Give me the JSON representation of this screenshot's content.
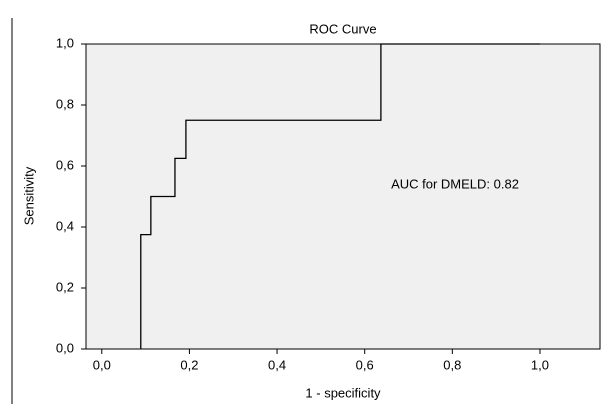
{
  "chart_data": {
    "type": "line",
    "title": "ROC Curve",
    "x_label": "1 - specificity",
    "y_label": "Sensitivity",
    "annotation": "AUC for DMELD: 0.82",
    "x": [
      0.089,
      0.089,
      0.112,
      0.112,
      0.167,
      0.167,
      0.192,
      0.192,
      0.637,
      0.637,
      1.0
    ],
    "values": [
      0,
      0.375,
      0.375,
      0.5,
      0.5,
      0.625,
      0.625,
      0.75,
      0.75,
      1.0,
      1.0
    ],
    "color": "#000000",
    "xlim": [
      -0.036,
      1.137
    ],
    "ylim": [
      0,
      1
    ],
    "xticks": [
      {
        "value": 0,
        "label": "0,0"
      },
      {
        "value": 0.2,
        "label": "0,2"
      },
      {
        "value": 0.4,
        "label": "0,4"
      },
      {
        "value": 0.6,
        "label": "0,6"
      },
      {
        "value": 0.8,
        "label": "0,8"
      },
      {
        "value": 1,
        "label": "1,0"
      }
    ],
    "yticks": [
      {
        "value": 0,
        "label": "0,0"
      },
      {
        "value": 0.2,
        "label": "0,2"
      },
      {
        "value": 0.4,
        "label": "0,4"
      },
      {
        "value": 0.6,
        "label": "0,6"
      },
      {
        "value": 0.8,
        "label": "0,8"
      },
      {
        "value": 1,
        "label": "1,0"
      }
    ],
    "grid": false
  }
}
